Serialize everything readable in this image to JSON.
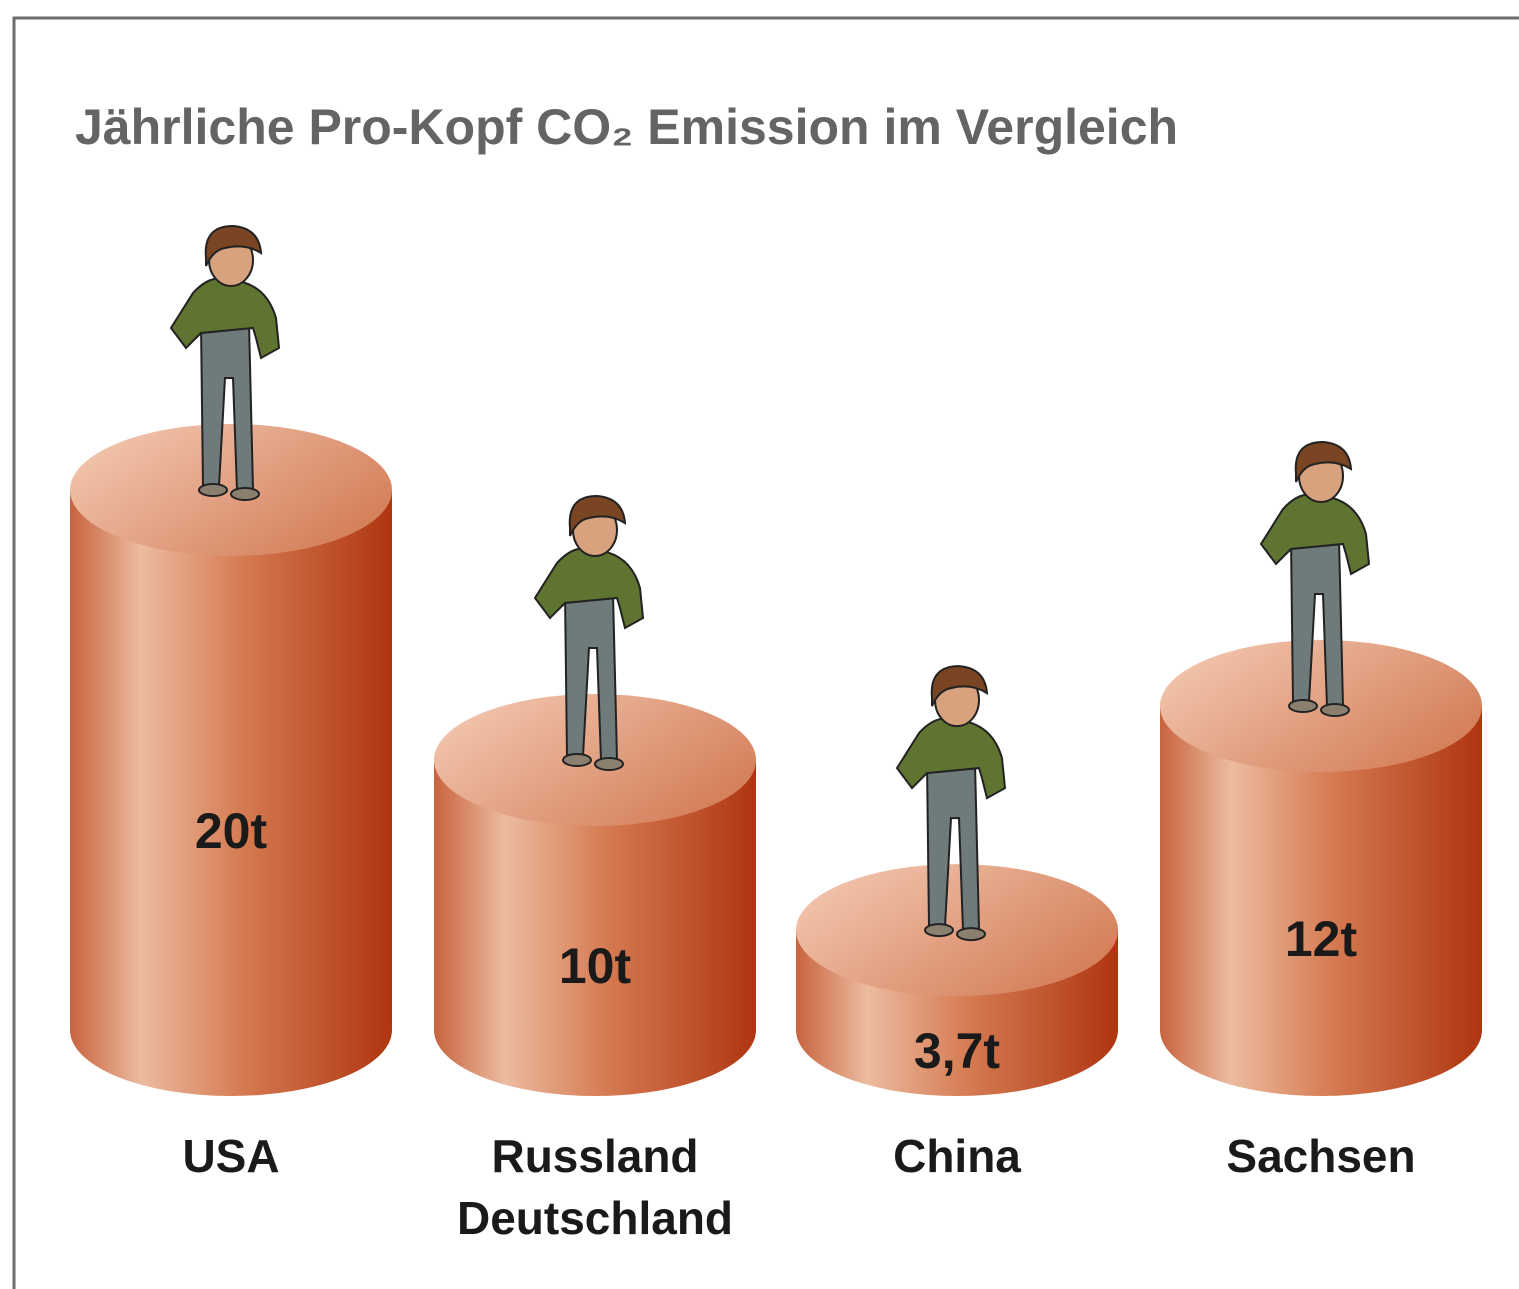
{
  "chart_data": {
    "type": "bar",
    "title": "Jährliche Pro-Kopf CO₂ Emission im Vergleich",
    "categories": [
      "USA",
      "Russland\nDeutschland",
      "China",
      "Sachsen"
    ],
    "values": [
      20,
      10,
      3.7,
      12
    ],
    "value_labels": [
      "20t",
      "10t",
      "3,7t",
      "12t"
    ],
    "color": "#c9532b"
  }
}
